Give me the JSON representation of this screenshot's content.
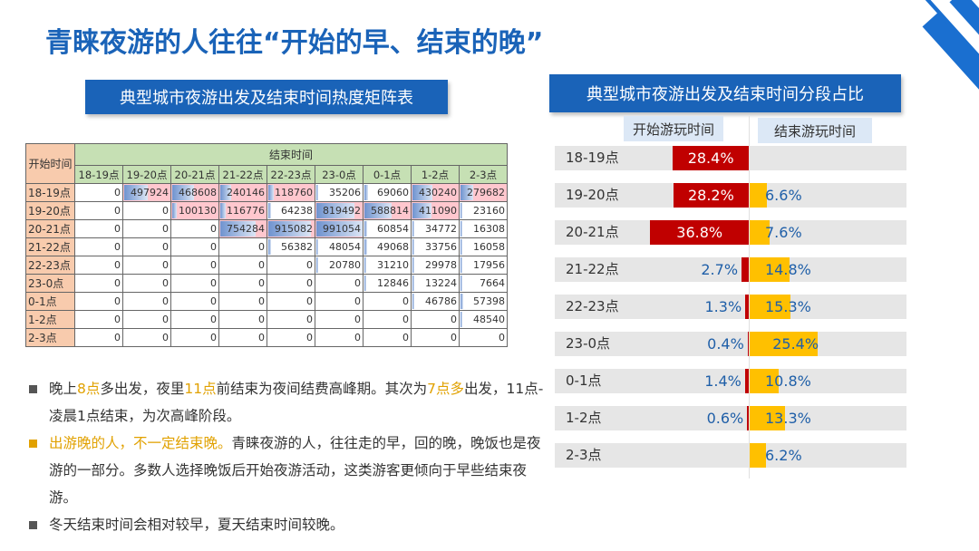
{
  "title": "青睐夜游的人往往“开始的早、结束的晚”",
  "left_banner": "典型城市夜游出发及结束时间热度矩阵表",
  "right_banner": "典型城市夜游出发及结束时间分段占比",
  "bullets": [
    {
      "parts": [
        {
          "t": "晚上",
          "c": "n"
        },
        {
          "t": "8点",
          "c": "h"
        },
        {
          "t": "多出发，夜里",
          "c": "n"
        },
        {
          "t": "11点",
          "c": "h"
        },
        {
          "t": "前结束为夜间结费高峰期。其次为",
          "c": "n"
        },
        {
          "t": "7点多",
          "c": "h"
        },
        {
          "t": "出发，11点-凌晨1点结束，为次高峰阶段。",
          "c": "n"
        }
      ]
    },
    {
      "parts": [
        {
          "t": "出游晚的人，不一定结束晚。",
          "c": "h"
        },
        {
          "t": "青睐夜游的人，往往走的早，回的晚，晚饭也是夜游的一部分。多数人选择晚饭后开始夜游活动，这类游客更倾向于早些结束夜游。",
          "c": "n"
        }
      ]
    },
    {
      "parts": [
        {
          "t": "冬天结束时间会相对较早，夏天结束时间较晚。",
          "c": "n"
        }
      ]
    }
  ],
  "chart_data": [
    {
      "type": "table",
      "title": "典型城市夜游出发及结束时间热度矩阵表",
      "corner_label": "开始时间",
      "column_group_label": "结束时间",
      "columns": [
        "18-19点",
        "19-20点",
        "20-21点",
        "21-22点",
        "22-23点",
        "23-0点",
        "0-1点",
        "1-2点",
        "2-3点"
      ],
      "rows": [
        "18-19点",
        "19-20点",
        "20-21点",
        "21-22点",
        "22-23点",
        "23-0点",
        "0-1点",
        "1-2点",
        "2-3点"
      ],
      "values": [
        [
          0,
          497924,
          468608,
          240146,
          118760,
          35206,
          69060,
          430240,
          279682
        ],
        [
          0,
          0,
          100130,
          116776,
          64238,
          819492,
          588814,
          411090,
          23160
        ],
        [
          0,
          0,
          0,
          754284,
          915082,
          991054,
          60854,
          34772,
          16308
        ],
        [
          0,
          0,
          0,
          0,
          56382,
          48054,
          49068,
          33756,
          16058
        ],
        [
          0,
          0,
          0,
          0,
          0,
          20780,
          31210,
          29978,
          17956
        ],
        [
          0,
          0,
          0,
          0,
          0,
          0,
          12846,
          13224,
          7664
        ],
        [
          0,
          0,
          0,
          0,
          0,
          0,
          0,
          46786,
          57398
        ],
        [
          0,
          0,
          0,
          0,
          0,
          0,
          0,
          0,
          48540
        ],
        [
          0,
          0,
          0,
          0,
          0,
          0,
          0,
          0,
          0
        ]
      ],
      "highlight_threshold": 100000,
      "highlight_color": "#ffc7ce",
      "bar_color": "#6f93cf",
      "max_value": 991054
    },
    {
      "type": "bar",
      "title": "典型城市夜游出发及结束时间分段占比",
      "categories": [
        "18-19点",
        "19-20点",
        "20-21点",
        "21-22点",
        "22-23点",
        "23-0点",
        "0-1点",
        "1-2点",
        "2-3点"
      ],
      "series": [
        {
          "name": "开始游玩时间",
          "color": "#c00000",
          "values": [
            28.4,
            28.2,
            36.8,
            2.7,
            1.3,
            0.4,
            1.4,
            0.6,
            null
          ],
          "labels": [
            "28.4%",
            "28.2%",
            "36.8%",
            "2.7%",
            "1.3%",
            "0.4%",
            "1.4%",
            "0.6%",
            ""
          ]
        },
        {
          "name": "结束游玩时间",
          "color": "#ffc000",
          "values": [
            null,
            6.6,
            7.6,
            14.8,
            15.3,
            25.4,
            10.8,
            13.3,
            6.2
          ],
          "labels": [
            "",
            "6.6%",
            "7.6%",
            "14.8%",
            "15.3%",
            "25.4%",
            "10.8%",
            "13.3%",
            "6.2%"
          ]
        }
      ],
      "xlim": [
        0,
        40
      ]
    }
  ]
}
